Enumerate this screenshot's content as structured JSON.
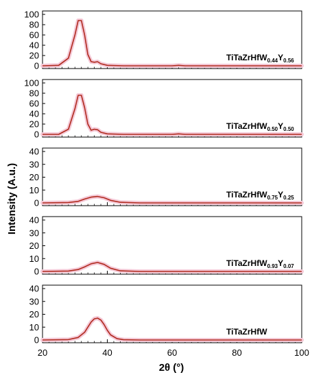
{
  "chart_data": {
    "type": "line",
    "ylabel": "Intensity (A.u.)",
    "xlabel": "2θ (°)",
    "xlim": [
      20,
      100
    ],
    "x_ticks": [
      20,
      40,
      60,
      80,
      100
    ],
    "x_tick_labels": [
      "20",
      "40",
      "60",
      "80",
      "100"
    ],
    "grid": false,
    "colors": {
      "line": "#b02a1e",
      "fill": "#f4c8d6",
      "frame": "#000000"
    },
    "panels": [
      {
        "label": {
          "base": "TiTaZrHfW",
          "sub1": "0.44",
          "y": "Y",
          "sub2": "0.56"
        },
        "ylim": [
          0,
          100
        ],
        "y_ticks": [
          0,
          20,
          40,
          60,
          80,
          100
        ],
        "x": [
          20,
          25,
          28,
          30,
          31,
          32,
          33,
          34,
          35,
          36,
          37,
          38,
          40,
          45,
          60,
          62,
          64,
          70,
          80,
          90,
          100
        ],
        "y": [
          0,
          1,
          15,
          60,
          88,
          88,
          60,
          22,
          8,
          7,
          8,
          4,
          1,
          0,
          0,
          1,
          0,
          0,
          0,
          0,
          0
        ]
      },
      {
        "label": {
          "base": "TiTaZrHfW",
          "sub1": "0.50",
          "y": "Y",
          "sub2": "0.50"
        },
        "ylim": [
          0,
          100
        ],
        "y_ticks": [
          0,
          20,
          40,
          60,
          80,
          100
        ],
        "x": [
          20,
          25,
          28,
          30,
          31,
          32,
          33,
          34,
          35,
          36,
          37,
          38,
          40,
          45,
          60,
          62,
          64,
          70,
          80,
          90,
          100
        ],
        "y": [
          0,
          0,
          10,
          50,
          76,
          76,
          52,
          20,
          8,
          10,
          9,
          4,
          1,
          0,
          0,
          1,
          0,
          0,
          0,
          0,
          0
        ]
      },
      {
        "label": {
          "base": "TiTaZrHfW",
          "sub1": "0.75",
          "y": "Y",
          "sub2": "0.25"
        },
        "ylim": [
          0,
          40
        ],
        "y_ticks": [
          0,
          10,
          20,
          30,
          40
        ],
        "x": [
          20,
          28,
          31,
          33,
          35,
          37,
          39,
          41,
          44,
          50,
          60,
          70,
          80,
          90,
          100
        ],
        "y": [
          0,
          0.3,
          1.2,
          3,
          4.5,
          5,
          4,
          2,
          0.5,
          0,
          0,
          0,
          0,
          0,
          0
        ]
      },
      {
        "label": {
          "base": "TiTaZrHfW",
          "sub1": "0.93",
          "y": "Y",
          "sub2": "0.07"
        },
        "ylim": [
          0,
          40
        ],
        "y_ticks": [
          0,
          10,
          20,
          30,
          40
        ],
        "x": [
          20,
          28,
          31,
          33,
          35,
          37,
          39,
          41,
          44,
          50,
          60,
          70,
          80,
          90,
          100
        ],
        "y": [
          0,
          0.3,
          1.5,
          3.5,
          6,
          7,
          5.5,
          2.5,
          0.5,
          0,
          0,
          0,
          0,
          0,
          0
        ]
      },
      {
        "label": {
          "base": "TiTaZrHfW",
          "sub1": "",
          "y": "",
          "sub2": ""
        },
        "ylim": [
          0,
          40
        ],
        "y_ticks": [
          0,
          10,
          20,
          30,
          40
        ],
        "x": [
          20,
          28,
          31,
          33,
          34,
          35,
          36,
          37,
          38,
          39,
          40,
          41,
          43,
          45,
          50,
          60,
          70,
          80,
          90,
          100
        ],
        "y": [
          0,
          0.3,
          2,
          6,
          10,
          14,
          16.5,
          17,
          15.5,
          12,
          7.5,
          4,
          1,
          0.2,
          0,
          0,
          0,
          0,
          0,
          0
        ]
      }
    ]
  }
}
